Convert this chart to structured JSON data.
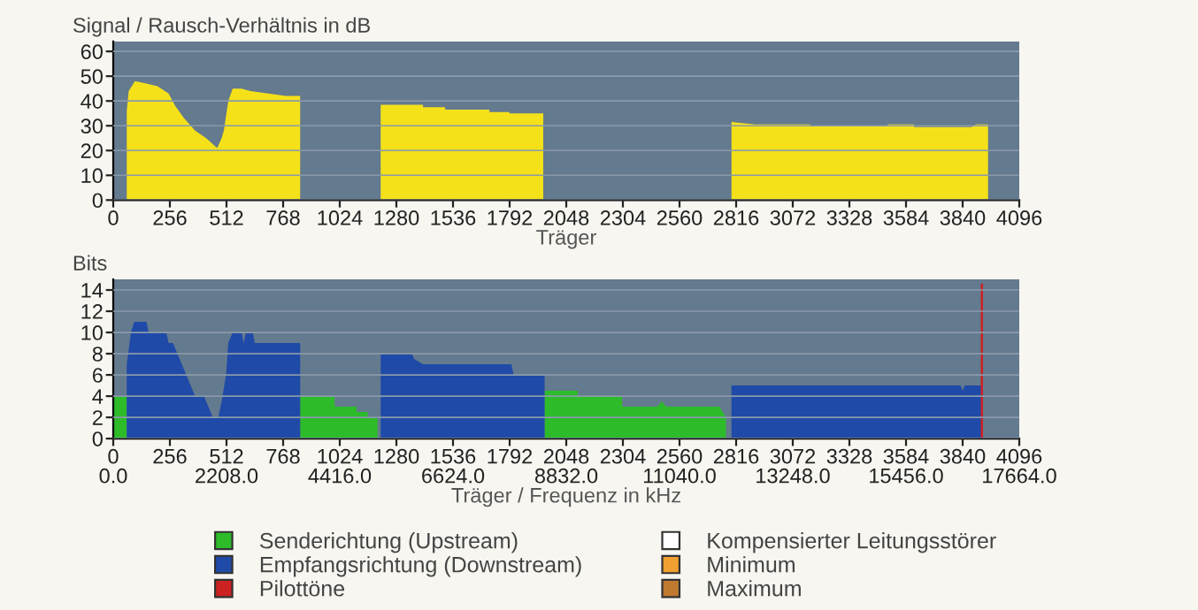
{
  "chart_data": [
    {
      "type": "area",
      "ylabel": "Signal / Rausch-Verhältnis in dB",
      "xlabel": "Träger",
      "xlim": [
        0,
        4096
      ],
      "ylim": [
        0,
        64
      ],
      "xticks": [
        0,
        256,
        512,
        768,
        1024,
        1280,
        1536,
        1792,
        2048,
        2304,
        2560,
        2816,
        3072,
        3328,
        3584,
        3840,
        4096
      ],
      "yticks": [
        0,
        10,
        20,
        30,
        40,
        50,
        60
      ],
      "grid": "y",
      "series": [
        {
          "color": "#f5e11a",
          "x": [
            61,
            70,
            98,
            150,
            200,
            250,
            280,
            320,
            370,
            420,
            470,
            490,
            500,
            520,
            540,
            580,
            620,
            700,
            780,
            845,
            846,
            1208,
            1209,
            1400,
            1401,
            1500,
            1501,
            1700,
            1701,
            1790,
            1791,
            1944,
            1945,
            2794,
            2795,
            2900,
            3150,
            3151,
            3500,
            3501,
            3620,
            3621,
            3880,
            3900,
            3955
          ],
          "values": [
            36,
            44,
            48,
            47,
            46,
            43,
            38,
            33,
            28,
            25,
            21,
            25,
            28,
            40,
            45,
            45,
            44,
            43,
            42,
            42,
            null,
            null,
            38.5,
            38.5,
            37.5,
            37.5,
            36.5,
            36.5,
            35.5,
            35.5,
            35,
            35,
            null,
            null,
            31.5,
            30.5,
            30.5,
            30,
            30,
            30.5,
            30.5,
            29.5,
            29.5,
            30.5,
            30.5
          ]
        }
      ]
    },
    {
      "type": "area",
      "ylabel": "Bits",
      "xlabel": "Träger / Frequenz in kHz",
      "xlim": [
        0,
        4096
      ],
      "ylim": [
        0,
        15
      ],
      "yticks": [
        0,
        2,
        4,
        6,
        8,
        10,
        12,
        14
      ],
      "grid": "y",
      "legend": "bottom",
      "xticks": [
        {
          "value": 0,
          "label": "0\n0.0"
        },
        256,
        {
          "value": 512,
          "label": "512\n2208.0"
        },
        768,
        {
          "value": 1024,
          "label": "1024\n4416.0"
        },
        1280,
        {
          "value": 1536,
          "label": "1536\n6624.0"
        },
        1792,
        {
          "value": 2048,
          "label": "2048\n8832.0"
        },
        2304,
        {
          "value": 2560,
          "label": "2560\n11040.0"
        },
        2816,
        {
          "value": 3072,
          "label": "3072\n13248.0"
        },
        3328,
        {
          "value": 3584,
          "label": "3584\n15456.0"
        },
        3840,
        {
          "value": 4096,
          "label": "4096\n17664.0"
        }
      ],
      "series": [
        {
          "name": "Senderichtung (Upstream)",
          "color": "#2dbb2a",
          "x": [
            0,
            61,
            62,
            844,
            845,
            1000,
            1001,
            1100,
            1101,
            1150,
            1151,
            1195,
            1196,
            1949,
            1950,
            2100,
            2101,
            2300,
            2301,
            2460,
            2480,
            2500,
            2740,
            2770
          ],
          "values": [
            4,
            4,
            null,
            null,
            4,
            4,
            3,
            3,
            2.5,
            2.5,
            2,
            2,
            null,
            null,
            4.5,
            4.5,
            4,
            4,
            3,
            3,
            3.5,
            3,
            3,
            2
          ]
        },
        {
          "name": "Empfangsrichtung (Downstream)",
          "color": "#1f4aa8",
          "x": [
            61,
            80,
            95,
            150,
            160,
            240,
            250,
            270,
            290,
            310,
            330,
            350,
            370,
            410,
            430,
            450,
            475,
            490,
            510,
            520,
            540,
            580,
            590,
            600,
            630,
            640,
            845,
            846,
            1208,
            1209,
            1350,
            1360,
            1400,
            1800,
            1810,
            1950,
            1951,
            2794,
            2795,
            3830,
            3840,
            3850,
            3930
          ],
          "values": [
            7,
            10,
            11,
            11,
            10,
            10,
            9,
            9,
            8,
            7,
            6,
            5,
            4,
            4,
            3,
            2,
            2,
            3.5,
            6,
            9,
            10,
            10,
            9,
            10,
            10,
            9,
            9,
            null,
            null,
            8,
            8,
            7.5,
            7,
            7,
            6,
            6,
            null,
            null,
            5,
            5,
            4.5,
            5,
            5
          ]
        },
        {
          "name": "Pilottöne",
          "type": "bar",
          "color": "#cc2222",
          "x": [
            3927
          ],
          "values": [
            14.6
          ]
        },
        {
          "name": "Kompensierter Leitungsstörer",
          "color": "#ffffff"
        },
        {
          "name": "Minimum",
          "color": "#f0a030"
        },
        {
          "name": "Maximum",
          "color": "#c07a30"
        }
      ]
    }
  ]
}
